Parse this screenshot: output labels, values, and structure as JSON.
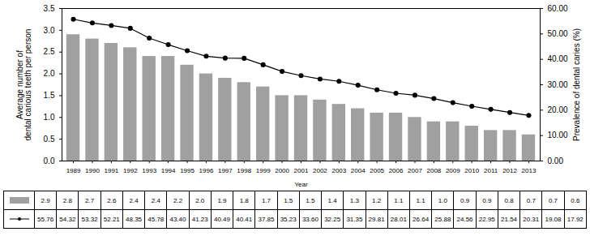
{
  "chart_data": {
    "type": "bar",
    "xlabel": "Year",
    "ylabel": "Average number of\ndental carious teeth per person",
    "y2label": "Prevalence of dental caries (%)",
    "categories": [
      "1989",
      "1990",
      "1991",
      "1992",
      "1993",
      "1994",
      "1995",
      "1996",
      "1997",
      "1998",
      "1999",
      "2000",
      "2001",
      "2002",
      "2003",
      "2004",
      "2005",
      "2006",
      "2007",
      "2008",
      "2009",
      "2010",
      "2011",
      "2012",
      "2013"
    ],
    "series": [
      {
        "type": "bar",
        "color": "#a0a0a0",
        "values": [
          2.9,
          2.8,
          2.7,
          2.6,
          2.4,
          2.4,
          2.2,
          2.0,
          1.9,
          1.8,
          1.7,
          1.5,
          1.5,
          1.4,
          1.3,
          1.2,
          1.1,
          1.1,
          1.0,
          0.9,
          0.9,
          0.8,
          0.7,
          0.7,
          0.6
        ],
        "value_labels": [
          "2.9",
          "2.8",
          "2.7",
          "2.6",
          "2.4",
          "2.4",
          "2.2",
          "2.0",
          "1.9",
          "1.8",
          "1.7",
          "1.5",
          "1.5",
          "1.4",
          "1.3",
          "1.2",
          "1.1",
          "1.1",
          "1.0",
          "0.9",
          "0.9",
          "0.8",
          "0.7",
          "0.7",
          "0.6"
        ],
        "data_labels": true
      },
      {
        "type": "line",
        "axis": "y2",
        "color": "#000000",
        "marker": "o",
        "values": [
          55.76,
          54.32,
          53.32,
          52.21,
          48.35,
          45.78,
          43.4,
          41.23,
          40.49,
          40.41,
          37.85,
          35.23,
          33.6,
          32.25,
          31.35,
          29.81,
          28.01,
          26.64,
          25.88,
          24.56,
          22.95,
          21.54,
          20.31,
          19.08,
          17.92
        ],
        "value_labels": [
          "55.76",
          "54.32",
          "53.32",
          "52.21",
          "48.35",
          "45.78",
          "43.40",
          "41.23",
          "40.49",
          "40.41",
          "37.85",
          "35.23",
          "33.60",
          "32.25",
          "31.35",
          "29.81",
          "28.01",
          "26.64",
          "25.88",
          "24.56",
          "22.95",
          "21.54",
          "20.31",
          "19.08",
          "17.92"
        ],
        "data_labels": true
      }
    ],
    "ylim": [
      0.0,
      3.5
    ],
    "yticks": [
      {
        "value": 0,
        "label": "0.0"
      },
      0.5,
      {
        "value": 1,
        "label": "1.0"
      },
      1.5,
      {
        "value": 2,
        "label": "2.0"
      },
      2.5,
      {
        "value": 3,
        "label": "3.0"
      },
      3.5
    ],
    "y2lim": [
      0.0,
      60.0
    ],
    "y2ticks": [
      {
        "value": 0,
        "label": "0.00"
      },
      {
        "value": 10,
        "label": "10.00"
      },
      {
        "value": 20,
        "label": "20.00"
      },
      {
        "value": 30,
        "label": "30.00"
      },
      {
        "value": 40,
        "label": "40.00"
      },
      {
        "value": 50,
        "label": "50.00"
      },
      {
        "value": 60,
        "label": "60.00"
      }
    ],
    "grid": false
  }
}
